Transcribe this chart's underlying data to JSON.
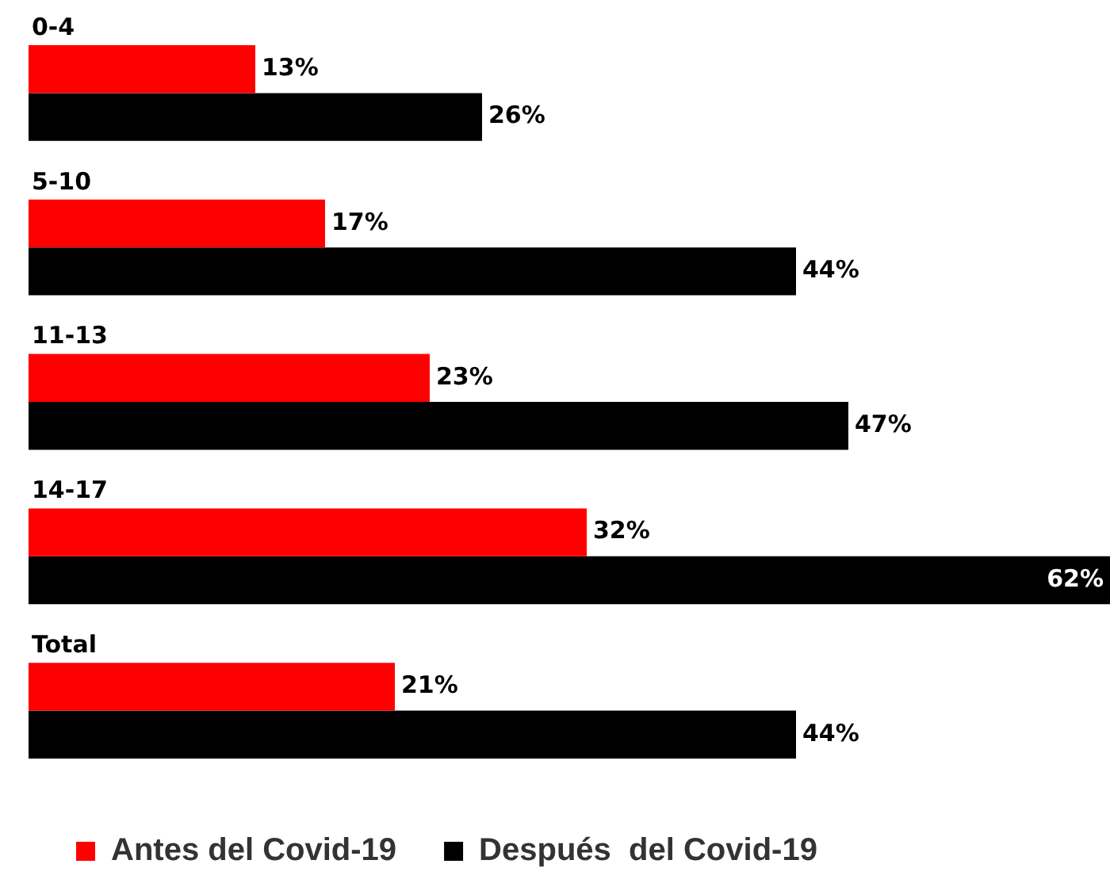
{
  "chart_data": {
    "type": "bar",
    "orientation": "horizontal",
    "categories": [
      "0-4",
      "5-10",
      "11-13",
      "14-17",
      "Total"
    ],
    "series": [
      {
        "name": "Antes del Covid-19",
        "color": "#ff0000",
        "values": [
          13,
          17,
          23,
          32,
          21
        ],
        "value_labels": [
          "13%",
          "17%",
          "23%",
          "32%",
          "21%"
        ]
      },
      {
        "name": "Después  del Covid-19",
        "color": "#000000",
        "values": [
          26,
          44,
          47,
          62,
          44
        ],
        "value_labels": [
          "26%",
          "44%",
          "47%",
          "62%",
          "44%"
        ]
      }
    ],
    "xlim": [
      0,
      62
    ],
    "tick_labels": "y",
    "grid": false,
    "legend": "bottom"
  }
}
